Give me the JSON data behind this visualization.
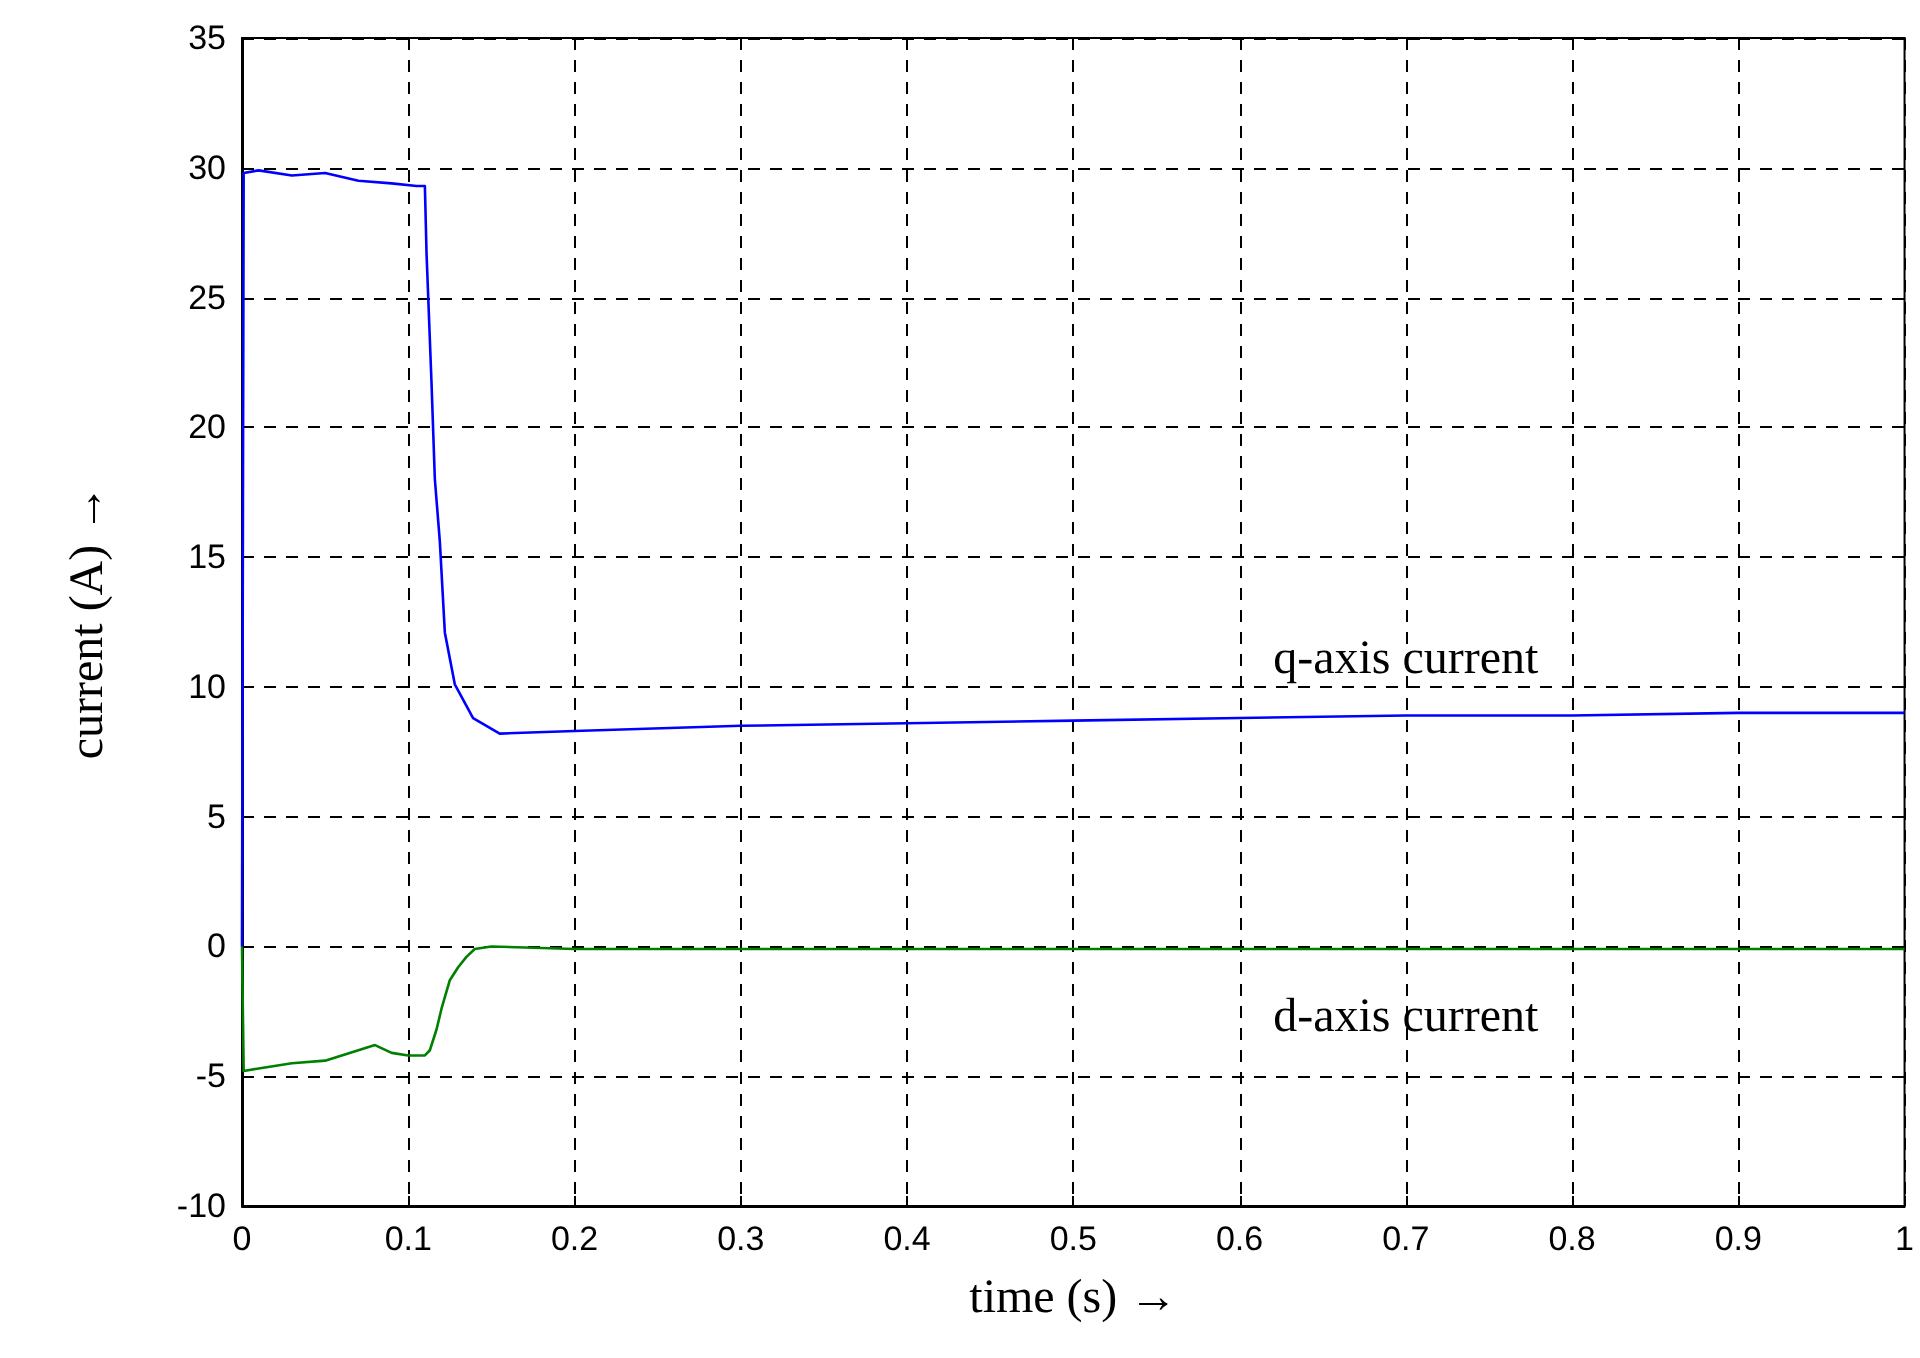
{
  "chart_data": {
    "type": "line",
    "xlabel": "time (s) →",
    "ylabel": "current (A) →",
    "xlim": [
      0,
      1
    ],
    "xticks": [
      0,
      0.1,
      0.2,
      0.3,
      0.4,
      0.5,
      0.6,
      0.7,
      0.8,
      0.9,
      1
    ],
    "ylim": [
      -10,
      35
    ],
    "yticks": [
      -10,
      -5,
      0,
      5,
      10,
      15,
      20,
      25,
      30,
      35
    ],
    "grid": true,
    "marker": "none",
    "line_style": "solid",
    "series": [
      {
        "name": "q-axis current",
        "color": "#0000ff",
        "x": [
          0,
          0.001,
          0.01,
          0.03,
          0.05,
          0.07,
          0.09,
          0.105,
          0.11,
          0.111,
          0.114,
          0.116,
          0.119,
          0.122,
          0.128,
          0.139,
          0.155,
          0.2,
          0.3,
          0.4,
          0.5,
          0.6,
          0.7,
          0.8,
          0.9,
          1
        ],
        "values": [
          0,
          29.8,
          29.9,
          29.7,
          29.8,
          29.5,
          29.4,
          29.3,
          29.3,
          26.7,
          21.7,
          18,
          15.6,
          12.1,
          10.1,
          8.8,
          8.2,
          8.3,
          8.5,
          8.6,
          8.7,
          8.8,
          8.9,
          8.9,
          9,
          9
        ]
      },
      {
        "name": "d-axis current",
        "color": "#008000",
        "x": [
          0,
          0.001,
          0.01,
          0.03,
          0.05,
          0.07,
          0.08,
          0.09,
          0.1,
          0.11,
          0.113,
          0.117,
          0.12,
          0.125,
          0.13,
          0.135,
          0.14,
          0.15,
          0.2,
          0.3,
          0.4,
          0.5,
          0.6,
          0.7,
          0.8,
          0.9,
          1
        ],
        "values": [
          0,
          -4.8,
          -4.7,
          -4.5,
          -4.4,
          -4.0,
          -3.8,
          -4.1,
          -4.2,
          -4.2,
          -4.0,
          -3.2,
          -2.4,
          -1.3,
          -0.8,
          -0.4,
          -0.1,
          0,
          -0.1,
          -0.1,
          -0.1,
          -0.1,
          -0.1,
          -0.1,
          -0.1,
          -0.1,
          -0.1
        ]
      }
    ]
  }
}
